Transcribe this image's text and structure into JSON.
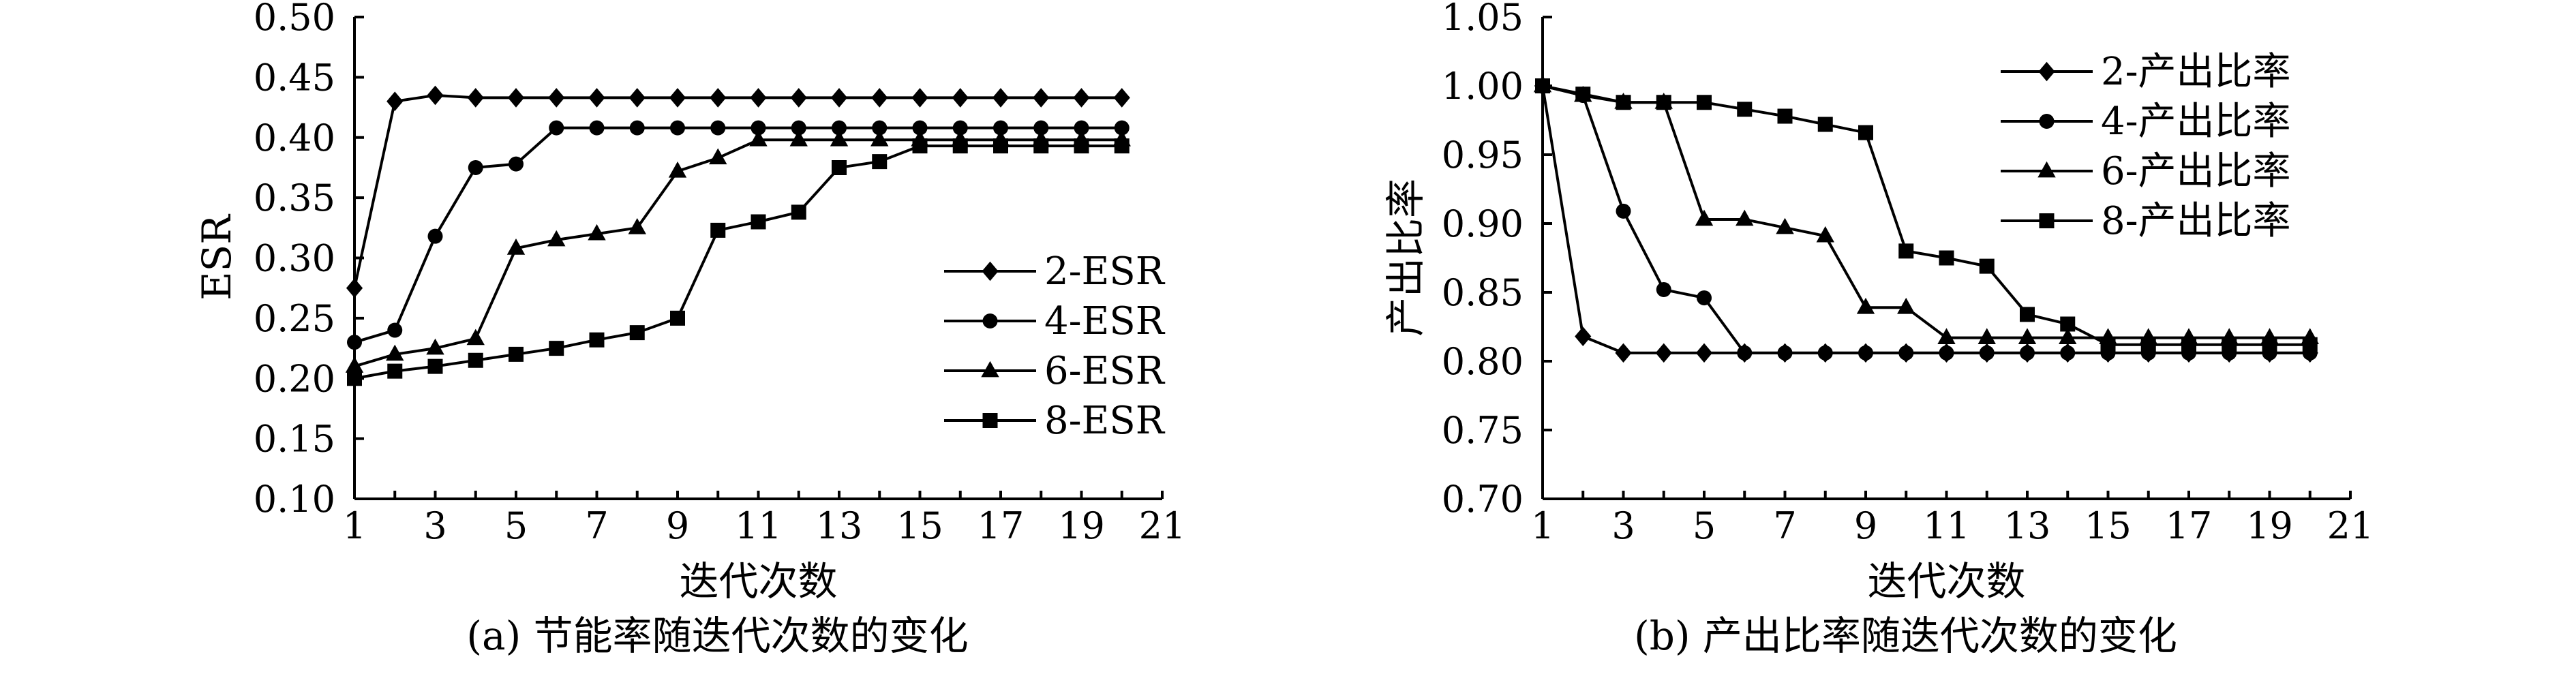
{
  "chart_data": [
    {
      "type": "line",
      "title": "",
      "caption": "(a) 节能率随迭代次数的变化",
      "xlabel": "迭代次数",
      "ylabel": "ESR",
      "xlim": [
        1,
        21
      ],
      "ylim": [
        0.1,
        0.5
      ],
      "xticks": [
        "1",
        "3",
        "5",
        "7",
        "9",
        "11",
        "13",
        "15",
        "17",
        "19",
        "21"
      ],
      "yticks": [
        "0.10",
        "0.15",
        "0.20",
        "0.25",
        "0.30",
        "0.35",
        "0.40",
        "0.45",
        "0.50"
      ],
      "legend_position": "center-right",
      "x": [
        1,
        2,
        3,
        4,
        5,
        6,
        7,
        8,
        9,
        10,
        11,
        12,
        13,
        14,
        15,
        16,
        17,
        18,
        19,
        20
      ],
      "series": [
        {
          "name": "2-ESR",
          "marker": "diamond",
          "values": [
            0.275,
            0.43,
            0.435,
            0.433,
            0.433,
            0.433,
            0.433,
            0.433,
            0.433,
            0.433,
            0.433,
            0.433,
            0.433,
            0.433,
            0.433,
            0.433,
            0.433,
            0.433,
            0.433,
            0.433
          ]
        },
        {
          "name": "4-ESR",
          "marker": "circle",
          "values": [
            0.23,
            0.24,
            0.318,
            0.375,
            0.378,
            0.408,
            0.408,
            0.408,
            0.408,
            0.408,
            0.408,
            0.408,
            0.408,
            0.408,
            0.408,
            0.408,
            0.408,
            0.408,
            0.408,
            0.408
          ]
        },
        {
          "name": "6-ESR",
          "marker": "triangle",
          "values": [
            0.21,
            0.22,
            0.225,
            0.233,
            0.308,
            0.315,
            0.32,
            0.325,
            0.372,
            0.383,
            0.398,
            0.398,
            0.398,
            0.398,
            0.398,
            0.398,
            0.398,
            0.398,
            0.398,
            0.398
          ]
        },
        {
          "name": "8-ESR",
          "marker": "square",
          "values": [
            0.2,
            0.206,
            0.21,
            0.215,
            0.22,
            0.225,
            0.232,
            0.238,
            0.25,
            0.323,
            0.33,
            0.338,
            0.375,
            0.38,
            0.393,
            0.393,
            0.393,
            0.393,
            0.393,
            0.393
          ]
        }
      ]
    },
    {
      "type": "line",
      "title": "",
      "caption": "(b) 产出比率随迭代次数的变化",
      "xlabel": "迭代次数",
      "ylabel": "产出比率",
      "xlim": [
        1,
        21
      ],
      "ylim": [
        0.7,
        1.05
      ],
      "xticks": [
        "1",
        "3",
        "5",
        "7",
        "9",
        "11",
        "13",
        "15",
        "17",
        "19",
        "21"
      ],
      "yticks": [
        "0.70",
        "0.75",
        "0.80",
        "0.85",
        "0.90",
        "0.95",
        "1.00",
        "1.05"
      ],
      "legend_position": "top-right",
      "x": [
        1,
        2,
        3,
        4,
        5,
        6,
        7,
        8,
        9,
        10,
        11,
        12,
        13,
        14,
        15,
        16,
        17,
        18,
        19,
        20
      ],
      "series": [
        {
          "name": "2-产出比率",
          "marker": "diamond",
          "values": [
            1.0,
            0.818,
            0.806,
            0.806,
            0.806,
            0.806,
            0.806,
            0.806,
            0.806,
            0.806,
            0.806,
            0.806,
            0.806,
            0.806,
            0.806,
            0.806,
            0.806,
            0.806,
            0.806,
            0.806
          ]
        },
        {
          "name": "4-产出比率",
          "marker": "circle",
          "values": [
            1.0,
            0.993,
            0.909,
            0.852,
            0.846,
            0.806,
            0.806,
            0.806,
            0.806,
            0.806,
            0.806,
            0.806,
            0.806,
            0.806,
            0.806,
            0.806,
            0.806,
            0.806,
            0.806,
            0.806
          ]
        },
        {
          "name": "6-产出比率",
          "marker": "triangle",
          "values": [
            1.0,
            0.993,
            0.988,
            0.988,
            0.903,
            0.903,
            0.897,
            0.891,
            0.839,
            0.839,
            0.817,
            0.817,
            0.817,
            0.817,
            0.817,
            0.817,
            0.817,
            0.817,
            0.817,
            0.817
          ]
        },
        {
          "name": "8-产出比率",
          "marker": "square",
          "values": [
            1.0,
            0.994,
            0.988,
            0.988,
            0.988,
            0.983,
            0.978,
            0.972,
            0.966,
            0.88,
            0.875,
            0.869,
            0.834,
            0.827,
            0.812,
            0.812,
            0.812,
            0.812,
            0.812,
            0.812
          ]
        }
      ]
    }
  ]
}
